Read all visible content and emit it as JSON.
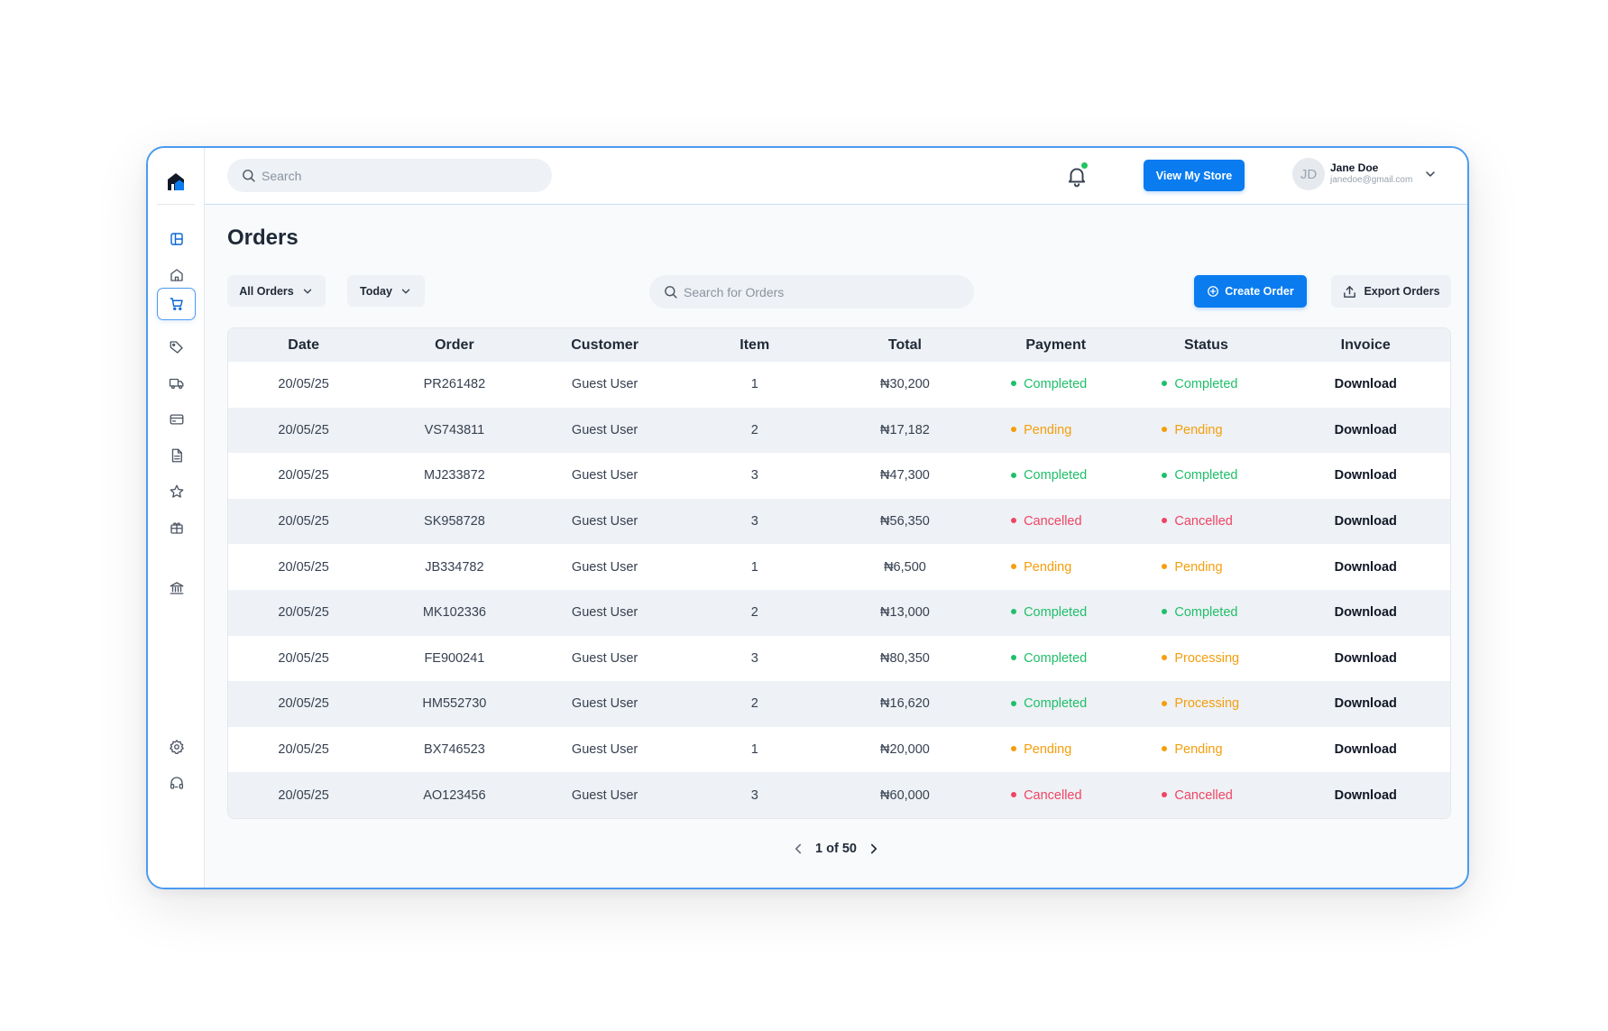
{
  "search": {
    "placeholder": "Search"
  },
  "header": {
    "view_store_label": "View My Store",
    "user": {
      "initials": "JD",
      "name": "Jane Doe",
      "email": "janedoe@gmail.com"
    }
  },
  "sidebar": {
    "items": [
      {
        "icon": "dashboard-icon"
      },
      {
        "icon": "home-icon"
      },
      {
        "icon": "cart-icon",
        "active": true
      },
      {
        "icon": "tag-icon"
      },
      {
        "icon": "truck-icon"
      },
      {
        "icon": "credit-card-icon"
      },
      {
        "icon": "document-icon"
      },
      {
        "icon": "star-icon"
      },
      {
        "icon": "gift-icon"
      },
      {
        "icon": "bank-icon"
      },
      {
        "icon": "settings-icon"
      },
      {
        "icon": "headset-icon"
      }
    ]
  },
  "page": {
    "title": "Orders",
    "filter_orders": "All Orders",
    "filter_date": "Today",
    "orders_search_placeholder": "Search for Orders",
    "create_label": "Create Order",
    "export_label": "Export Orders"
  },
  "colors": {
    "accent": "#0a7cf0",
    "completed": "#1fbf6a",
    "pending": "#f59e0b",
    "cancelled": "#ef4565",
    "processing": "#f59e0b"
  },
  "table": {
    "columns": [
      "Date",
      "Order",
      "Customer",
      "Item",
      "Total",
      "Payment",
      "Status",
      "Invoice"
    ],
    "rows": [
      {
        "date": "20/05/25",
        "order": "PR261482",
        "customer": "Guest User",
        "item": "1",
        "total": "₦30,200",
        "payment": "Completed",
        "status": "Completed",
        "invoice": "Download"
      },
      {
        "date": "20/05/25",
        "order": "VS743811",
        "customer": "Guest User",
        "item": "2",
        "total": "₦17,182",
        "payment": "Pending",
        "status": "Pending",
        "invoice": "Download"
      },
      {
        "date": "20/05/25",
        "order": "MJ233872",
        "customer": "Guest User",
        "item": "3",
        "total": "₦47,300",
        "payment": "Completed",
        "status": "Completed",
        "invoice": "Download"
      },
      {
        "date": "20/05/25",
        "order": "SK958728",
        "customer": "Guest User",
        "item": "3",
        "total": "₦56,350",
        "payment": "Cancelled",
        "status": "Cancelled",
        "invoice": "Download"
      },
      {
        "date": "20/05/25",
        "order": "JB334782",
        "customer": "Guest User",
        "item": "1",
        "total": "₦6,500",
        "payment": "Pending",
        "status": "Pending",
        "invoice": "Download"
      },
      {
        "date": "20/05/25",
        "order": "MK102336",
        "customer": "Guest User",
        "item": "2",
        "total": "₦13,000",
        "payment": "Completed",
        "status": "Completed",
        "invoice": "Download"
      },
      {
        "date": "20/05/25",
        "order": "FE900241",
        "customer": "Guest User",
        "item": "3",
        "total": "₦80,350",
        "payment": "Completed",
        "status": "Processing",
        "invoice": "Download"
      },
      {
        "date": "20/05/25",
        "order": "HM552730",
        "customer": "Guest User",
        "item": "2",
        "total": "₦16,620",
        "payment": "Completed",
        "status": "Processing",
        "invoice": "Download"
      },
      {
        "date": "20/05/25",
        "order": "BX746523",
        "customer": "Guest User",
        "item": "1",
        "total": "₦20,000",
        "payment": "Pending",
        "status": "Pending",
        "invoice": "Download"
      },
      {
        "date": "20/05/25",
        "order": "AO123456",
        "customer": "Guest User",
        "item": "3",
        "total": "₦60,000",
        "payment": "Cancelled",
        "status": "Cancelled",
        "invoice": "Download"
      }
    ]
  },
  "pagination": {
    "label": "1 of 50"
  }
}
